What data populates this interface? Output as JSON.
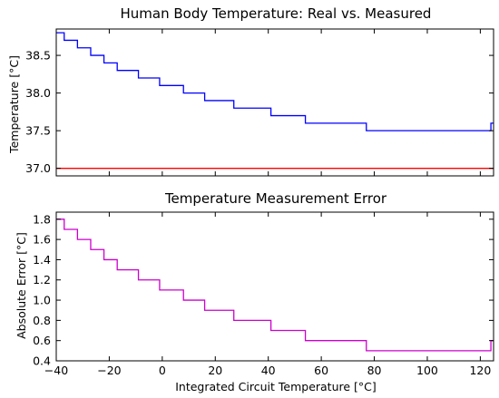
{
  "chart_data": [
    {
      "type": "line",
      "title": "Human Body Temperature: Real vs. Measured",
      "xlabel": "",
      "ylabel": "Temperature [°C]",
      "xlim": [
        -40,
        125
      ],
      "ylim": [
        36.9,
        38.85
      ],
      "xticks": [],
      "yticks": [
        "37.0",
        "37.5",
        "38.0",
        "38.5"
      ],
      "ytick_values": [
        37.0,
        37.5,
        38.0,
        38.5
      ],
      "grid": false,
      "series": [
        {
          "style": "step",
          "color": "#0000ff",
          "x": [
            -40,
            -37,
            -32,
            -27,
            -22,
            -17,
            -9,
            -1,
            8,
            16,
            27,
            41,
            54,
            77,
            124,
            125
          ],
          "y": [
            38.8,
            38.7,
            38.6,
            38.5,
            38.4,
            38.3,
            38.2,
            38.1,
            38.0,
            37.9,
            37.8,
            37.7,
            37.6,
            37.5,
            37.6,
            37.6
          ]
        },
        {
          "style": "line",
          "color": "#ff0000",
          "x": [
            -40,
            125
          ],
          "y": [
            37.0,
            37.0
          ]
        }
      ]
    },
    {
      "type": "line",
      "title": "Temperature Measurement Error",
      "xlabel": "Integrated Circuit Temperature [°C]",
      "ylabel": "Absolute Error [°C]",
      "xlim": [
        -40,
        125
      ],
      "ylim": [
        0.4,
        1.87
      ],
      "xticks": [
        "−40",
        "−20",
        "0",
        "20",
        "40",
        "60",
        "80",
        "100",
        "120"
      ],
      "xtick_values": [
        -40,
        -20,
        0,
        20,
        40,
        60,
        80,
        100,
        120
      ],
      "yticks": [
        "0.4",
        "0.6",
        "0.8",
        "1.0",
        "1.2",
        "1.4",
        "1.6",
        "1.8"
      ],
      "ytick_values": [
        0.4,
        0.6,
        0.8,
        1.0,
        1.2,
        1.4,
        1.6,
        1.8
      ],
      "grid": false,
      "series": [
        {
          "style": "step",
          "color": "#cc00cc",
          "x": [
            -40,
            -37,
            -32,
            -27,
            -22,
            -17,
            -9,
            -1,
            8,
            16,
            27,
            41,
            54,
            77,
            124,
            125
          ],
          "y": [
            1.8,
            1.7,
            1.6,
            1.5,
            1.4,
            1.3,
            1.2,
            1.1,
            1.0,
            0.9,
            0.8,
            0.7,
            0.6,
            0.5,
            0.6,
            0.6
          ]
        }
      ]
    }
  ]
}
